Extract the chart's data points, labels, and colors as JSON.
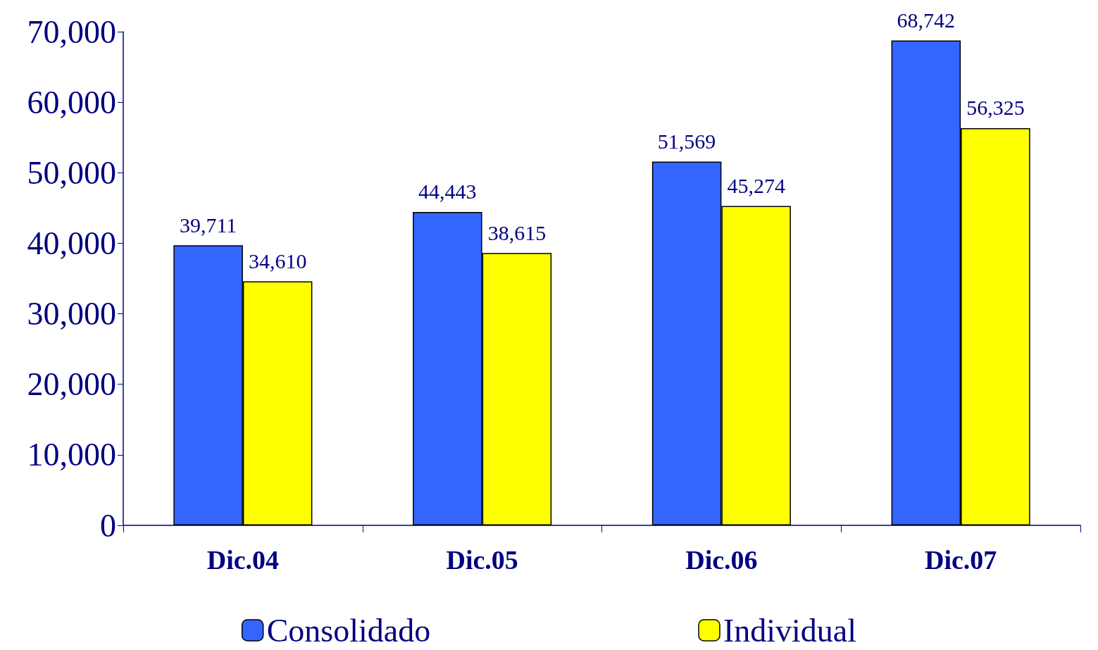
{
  "chart_data": {
    "type": "bar",
    "categories": [
      "Dic.04",
      "Dic.05",
      "Dic.06",
      "Dic.07"
    ],
    "series": [
      {
        "name": "Consolidado",
        "color": "#3366ff",
        "values": [
          39711,
          44443,
          51569,
          68742
        ],
        "value_labels": [
          "39,711",
          "44,443",
          "51,569",
          "68,742"
        ]
      },
      {
        "name": "Individual",
        "color": "#ffff00",
        "values": [
          34610,
          38615,
          45274,
          56325
        ],
        "value_labels": [
          "34,610",
          "38,615",
          "45,274",
          "56,325"
        ]
      }
    ],
    "ylim": [
      0,
      70000
    ],
    "yticks": [
      {
        "value": 0,
        "label": "0"
      },
      {
        "value": 10000,
        "label": "10,000"
      },
      {
        "value": 20000,
        "label": "20,000"
      },
      {
        "value": 30000,
        "label": "30,000"
      },
      {
        "value": 40000,
        "label": "40,000"
      },
      {
        "value": 50000,
        "label": "50,000"
      },
      {
        "value": 60000,
        "label": "60,000"
      },
      {
        "value": 70000,
        "label": "70,000"
      }
    ],
    "grid": false,
    "legend": "bottom"
  }
}
